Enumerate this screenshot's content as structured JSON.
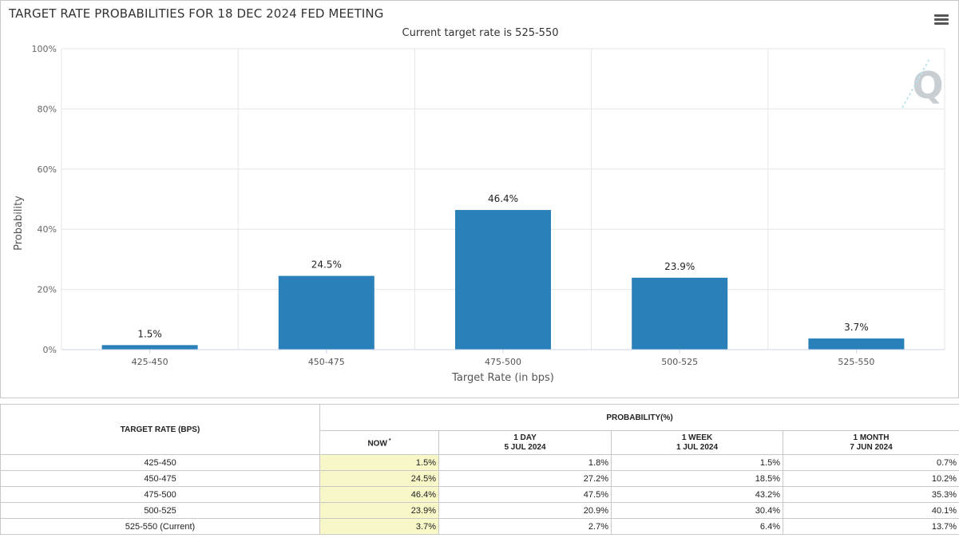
{
  "chart_data": {
    "type": "bar",
    "title": "TARGET RATE PROBABILITIES FOR 18 DEC 2024 FED MEETING",
    "subtitle": "Current target rate is 525-550",
    "categories": [
      "425-450",
      "450-475",
      "475-500",
      "500-525",
      "525-550"
    ],
    "values": [
      1.5,
      24.5,
      46.4,
      23.9,
      3.7
    ],
    "data_labels": [
      "1.5%",
      "24.5%",
      "46.4%",
      "23.9%",
      "3.7%"
    ],
    "xlabel": "Target Rate (in bps)",
    "ylabel": "Probability",
    "ylim": [
      0,
      100
    ],
    "yticks": [
      {
        "value": 0,
        "label": "0%"
      },
      {
        "value": 20,
        "label": "20%"
      },
      {
        "value": 40,
        "label": "40%"
      },
      {
        "value": 60,
        "label": "60%"
      },
      {
        "value": 80,
        "label": "80%"
      },
      {
        "value": 100,
        "label": "100%"
      }
    ],
    "grid": true,
    "bar_color": "#2a80b9",
    "watermark": "Q"
  },
  "menu": {
    "icon": "hamburger-menu-icon"
  },
  "table": {
    "col_rate_header": "TARGET RATE (BPS)",
    "group_header": "PROBABILITY(%)",
    "columns": [
      {
        "line1": "NOW",
        "line2": "",
        "marker": "*"
      },
      {
        "line1": "1 DAY",
        "line2": "5 JUL 2024",
        "marker": ""
      },
      {
        "line1": "1 WEEK",
        "line2": "1 JUL 2024",
        "marker": ""
      },
      {
        "line1": "1 MONTH",
        "line2": "7 JUN 2024",
        "marker": ""
      }
    ],
    "rows": [
      {
        "rate": "425-450",
        "values": [
          "1.5%",
          "1.8%",
          "1.5%",
          "0.7%"
        ]
      },
      {
        "rate": "450-475",
        "values": [
          "24.5%",
          "27.2%",
          "18.5%",
          "10.2%"
        ]
      },
      {
        "rate": "475-500",
        "values": [
          "46.4%",
          "47.5%",
          "43.2%",
          "35.3%"
        ]
      },
      {
        "rate": "500-525",
        "values": [
          "23.9%",
          "20.9%",
          "30.4%",
          "40.1%"
        ]
      },
      {
        "rate": "525-550 (Current)",
        "values": [
          "3.7%",
          "2.7%",
          "6.4%",
          "13.7%"
        ]
      }
    ],
    "now_highlight": "#f7f7c8"
  }
}
